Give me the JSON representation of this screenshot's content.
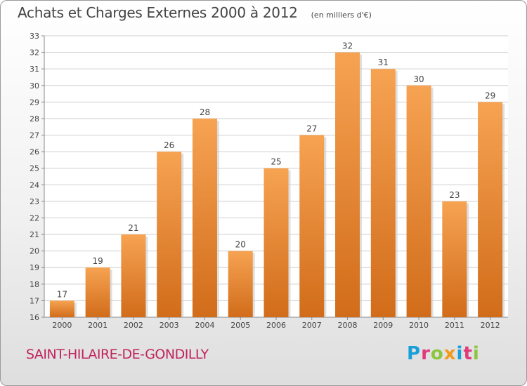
{
  "chart_data": {
    "type": "bar",
    "title": "Achats et Charges Externes 2000 à 2012",
    "subtitle": "(en milliers d'€)",
    "categories": [
      "2000",
      "2001",
      "2002",
      "2003",
      "2004",
      "2005",
      "2006",
      "2007",
      "2008",
      "2009",
      "2010",
      "2011",
      "2012"
    ],
    "values": [
      17,
      19,
      21,
      26,
      28,
      20,
      25,
      27,
      32,
      31,
      30,
      23,
      29
    ],
    "ylim": [
      16,
      33
    ],
    "yticks": [
      16,
      17,
      18,
      19,
      20,
      21,
      22,
      23,
      24,
      25,
      26,
      27,
      28,
      29,
      30,
      31,
      32,
      33
    ],
    "grid": true,
    "bar_color_light": "#f6a352",
    "bar_color_dark": "#d16c1a"
  },
  "footer": {
    "town": "SAINT-HILAIRE-DE-GONDILLY",
    "logo_text": "Proxiti",
    "logo_colors": [
      "#1aa0d8",
      "#e03a7a",
      "#8cc63e",
      "#f29a1c",
      "#1aa0d8",
      "#e03a7a",
      "#8cc63e"
    ]
  }
}
